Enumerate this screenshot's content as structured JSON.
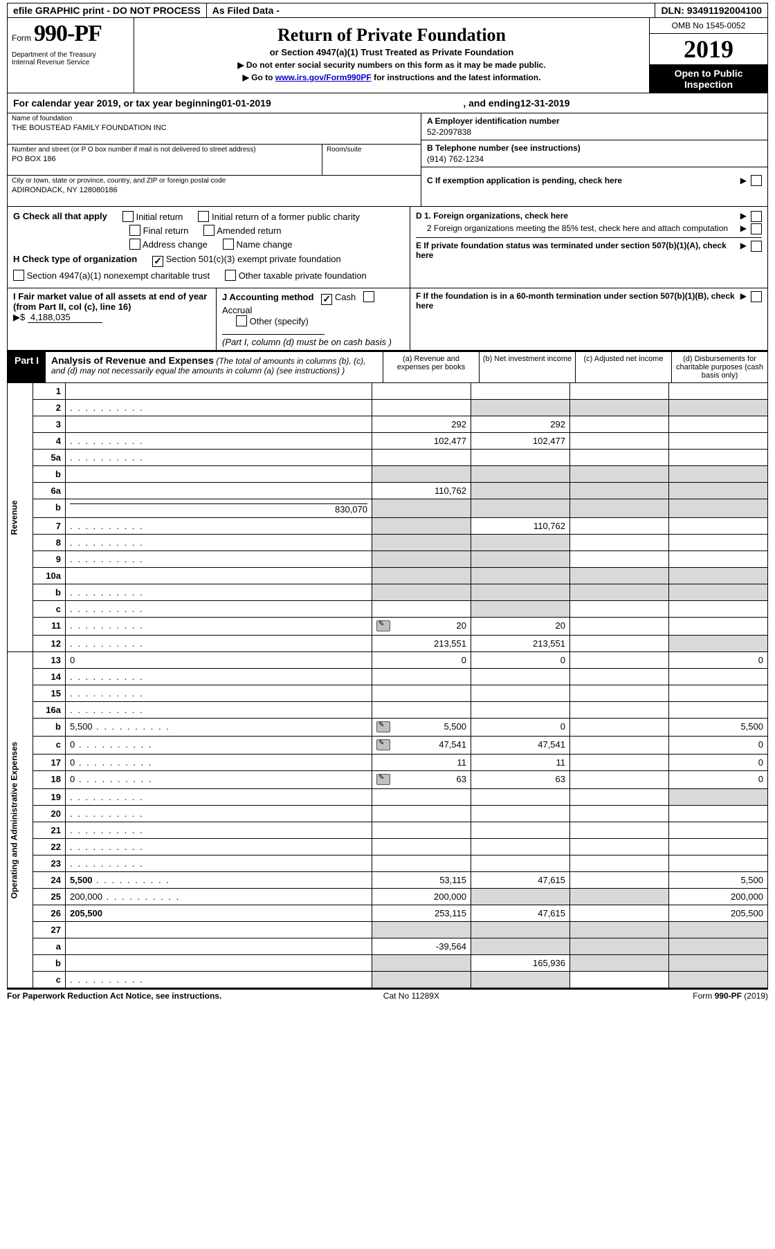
{
  "topbar": {
    "efile": "efile GRAPHIC print - DO NOT PROCESS",
    "asfiled": "As Filed Data -",
    "dln_label": "DLN:",
    "dln": "93491192004100"
  },
  "header": {
    "form_prefix": "Form",
    "form_no": "990-PF",
    "dept": "Department of the Treasury",
    "irs": "Internal Revenue Service",
    "title": "Return of Private Foundation",
    "subtitle": "or Section 4947(a)(1) Trust Treated as Private Foundation",
    "note1": "▶ Do not enter social security numbers on this form as it may be made public.",
    "note2_pre": "▶ Go to ",
    "note2_link": "www.irs.gov/Form990PF",
    "note2_post": " for instructions and the latest information.",
    "omb": "OMB No  1545-0052",
    "year": "2019",
    "open": "Open to Public Inspection"
  },
  "cal": {
    "prefix": "For calendar year 2019, or tax year beginning ",
    "begin": "01-01-2019",
    "mid": ", and ending ",
    "end": "12-31-2019"
  },
  "ident": {
    "name_label": "Name of foundation",
    "name": "THE BOUSTEAD FAMILY FOUNDATION INC",
    "addr_label": "Number and street (or P O  box number if mail is not delivered to street address)",
    "addr": "PO BOX 186",
    "room_label": "Room/suite",
    "city_label": "City or town, state or province, country, and ZIP or foreign postal code",
    "city": "ADIRONDACK, NY  128080186",
    "a_label": "A Employer identification number",
    "a_val": "52-2097838",
    "b_label": "B Telephone number (see instructions)",
    "b_val": "(914) 762-1234",
    "c_label": "C  If exemption application is pending, check here",
    "d1": "D 1. Foreign organizations, check here",
    "d2": "2  Foreign organizations meeting the 85% test, check here and attach computation",
    "e": "E  If private foundation status was terminated under section 507(b)(1)(A), check here",
    "f": "F  If the foundation is in a 60-month termination under section 507(b)(1)(B), check here"
  },
  "g": {
    "label": "G Check all that apply",
    "opts": [
      "Initial return",
      "Initial return of a former public charity",
      "Final return",
      "Amended return",
      "Address change",
      "Name change"
    ]
  },
  "h": {
    "label": "H Check type of organization",
    "opt501": "Section 501(c)(3) exempt private foundation",
    "opt4947": "Section 4947(a)(1) nonexempt charitable trust",
    "optOther": "Other taxable private foundation"
  },
  "i": {
    "label": "I Fair market value of all assets at end of year (from Part II, col  (c), line 16)",
    "val_prefix": "▶$ ",
    "val": "4,188,035"
  },
  "j": {
    "label": "J Accounting method",
    "cash": "Cash",
    "accrual": "Accrual",
    "other": "Other (specify)",
    "note": "(Part I, column (d) must be on cash basis )"
  },
  "partI": {
    "part": "Part I",
    "title": "Analysis of Revenue and Expenses",
    "note": "(The total of amounts in columns (b), (c), and (d) may not necessarily equal the amounts in column (a) (see instructions) )",
    "col_a": "(a)  Revenue and expenses per books",
    "col_b": "(b)  Net investment income",
    "col_c": "(c)  Adjusted net income",
    "col_d": "(d)  Disbursements for charitable purposes (cash basis only)"
  },
  "sidebars": {
    "rev": "Revenue",
    "exp": "Operating and Administrative Expenses"
  },
  "rows": [
    {
      "n": "1",
      "d": "",
      "a": "",
      "b": "",
      "c": ""
    },
    {
      "n": "2",
      "d": "",
      "a": "",
      "b": "",
      "c": "",
      "grey_bcd": true,
      "dots": true
    },
    {
      "n": "3",
      "d": "",
      "a": "292",
      "b": "292",
      "c": ""
    },
    {
      "n": "4",
      "d": "",
      "a": "102,477",
      "b": "102,477",
      "c": "",
      "dots": true
    },
    {
      "n": "5a",
      "d": "",
      "a": "",
      "b": "",
      "c": "",
      "dots": true
    },
    {
      "n": "b",
      "d": "",
      "a": "",
      "b": "",
      "c": "",
      "grey_all": true,
      "underline": true
    },
    {
      "n": "6a",
      "d": "",
      "a": "110,762",
      "b": "",
      "c": "",
      "grey_bcd": true
    },
    {
      "n": "b",
      "d": "",
      "a": "",
      "b": "",
      "c": "",
      "grey_all": true,
      "inline_val": "830,070"
    },
    {
      "n": "7",
      "d": "",
      "a": "",
      "b": "110,762",
      "c": "",
      "grey_a": true,
      "dots": true
    },
    {
      "n": "8",
      "d": "",
      "a": "",
      "b": "",
      "c": "",
      "grey_ab": true,
      "dots": true
    },
    {
      "n": "9",
      "d": "",
      "a": "",
      "b": "",
      "c": "",
      "grey_ab": true,
      "dots": true
    },
    {
      "n": "10a",
      "d": "",
      "a": "",
      "b": "",
      "c": "",
      "grey_all": true,
      "inline_box": true
    },
    {
      "n": "b",
      "d": "",
      "a": "",
      "b": "",
      "c": "",
      "grey_all": true,
      "inline_box": true,
      "dots": true
    },
    {
      "n": "c",
      "d": "",
      "a": "",
      "b": "",
      "c": "",
      "grey_b": true,
      "dots": true
    },
    {
      "n": "11",
      "d": "",
      "a": "20",
      "b": "20",
      "c": "",
      "icon": true,
      "dots": true
    },
    {
      "n": "12",
      "d": "",
      "a": "213,551",
      "b": "213,551",
      "c": "",
      "bold": true,
      "dots": true,
      "grey_d": true
    }
  ],
  "rows2": [
    {
      "n": "13",
      "d": "0",
      "a": "0",
      "b": "0",
      "c": ""
    },
    {
      "n": "14",
      "d": "",
      "a": "",
      "b": "",
      "c": "",
      "dots": true
    },
    {
      "n": "15",
      "d": "",
      "a": "",
      "b": "",
      "c": "",
      "dots": true
    },
    {
      "n": "16a",
      "d": "",
      "a": "",
      "b": "",
      "c": "",
      "dots": true
    },
    {
      "n": "b",
      "d": "5,500",
      "a": "5,500",
      "b": "0",
      "c": "",
      "icon": true,
      "dots": true
    },
    {
      "n": "c",
      "d": "0",
      "a": "47,541",
      "b": "47,541",
      "c": "",
      "icon": true,
      "dots": true
    },
    {
      "n": "17",
      "d": "0",
      "a": "11",
      "b": "11",
      "c": "",
      "dots": true
    },
    {
      "n": "18",
      "d": "0",
      "a": "63",
      "b": "63",
      "c": "",
      "icon": true,
      "dots": true
    },
    {
      "n": "19",
      "d": "",
      "a": "",
      "b": "",
      "c": "",
      "dots": true,
      "grey_d": true
    },
    {
      "n": "20",
      "d": "",
      "a": "",
      "b": "",
      "c": "",
      "dots": true
    },
    {
      "n": "21",
      "d": "",
      "a": "",
      "b": "",
      "c": "",
      "dots": true
    },
    {
      "n": "22",
      "d": "",
      "a": "",
      "b": "",
      "c": "",
      "dots": true
    },
    {
      "n": "23",
      "d": "",
      "a": "",
      "b": "",
      "c": "",
      "dots": true
    },
    {
      "n": "24",
      "d": "5,500",
      "a": "53,115",
      "b": "47,615",
      "c": "",
      "bold": true,
      "dots": true
    },
    {
      "n": "25",
      "d": "200,000",
      "a": "200,000",
      "b": "",
      "c": "",
      "dots": true,
      "grey_bc": true
    },
    {
      "n": "26",
      "d": "205,500",
      "a": "253,115",
      "b": "47,615",
      "c": "",
      "bold": true
    }
  ],
  "rows3": [
    {
      "n": "27",
      "d": "",
      "a": "",
      "b": "",
      "c": "",
      "grey_all": true
    },
    {
      "n": "a",
      "d": "",
      "a": "-39,564",
      "b": "",
      "c": "",
      "bold": true,
      "grey_bcd": true
    },
    {
      "n": "b",
      "d": "",
      "a": "",
      "b": "165,936",
      "c": "",
      "bold": true,
      "grey_a": true,
      "grey_cd": true
    },
    {
      "n": "c",
      "d": "",
      "a": "",
      "b": "",
      "c": "",
      "bold": true,
      "grey_ab": true,
      "grey_d": true,
      "dots": true
    }
  ],
  "footer": {
    "left": "For Paperwork Reduction Act Notice, see instructions.",
    "mid": "Cat  No  11289X",
    "right_pre": "Form ",
    "right_form": "990-PF",
    "right_post": " (2019)"
  }
}
